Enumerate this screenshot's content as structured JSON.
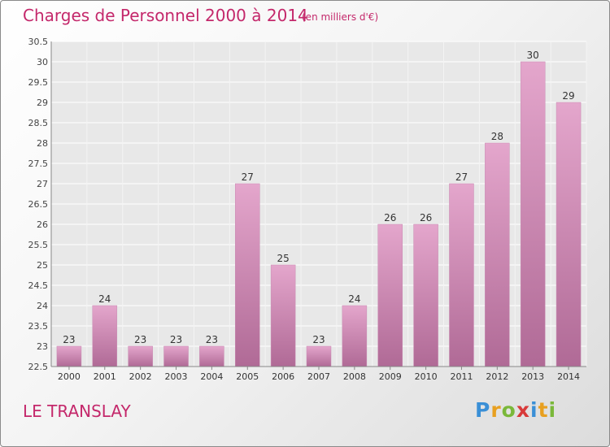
{
  "header": {
    "title": "Charges de Personnel 2000 à 2014",
    "subtitle": "(en milliers d'€)"
  },
  "footer": {
    "place": "LE TRANSLAY",
    "logo": "Proxiti"
  },
  "colors": {
    "accent": "#c4286b",
    "bar_top": "#e4a6cc",
    "bar_bottom": "#b06a96"
  },
  "chart_data": {
    "type": "bar",
    "title": "Charges de Personnel 2000 à 2014",
    "subtitle": "(en milliers d'€)",
    "xlabel": "",
    "ylabel": "",
    "categories": [
      "2000",
      "2001",
      "2002",
      "2003",
      "2004",
      "2005",
      "2006",
      "2007",
      "2008",
      "2009",
      "2010",
      "2011",
      "2012",
      "2013",
      "2014"
    ],
    "values": [
      23,
      24,
      23,
      23,
      23,
      27,
      25,
      23,
      24,
      26,
      26,
      27,
      28,
      30,
      29
    ],
    "ylim": [
      22.5,
      30.5
    ],
    "yticks": [
      "22.5",
      "23",
      "23.5",
      "24",
      "24.5",
      "25",
      "25.5",
      "26",
      "26.5",
      "27",
      "27.5",
      "28",
      "28.5",
      "29",
      "29.5",
      "30",
      "30.5"
    ],
    "grid": true,
    "legend": "none"
  }
}
